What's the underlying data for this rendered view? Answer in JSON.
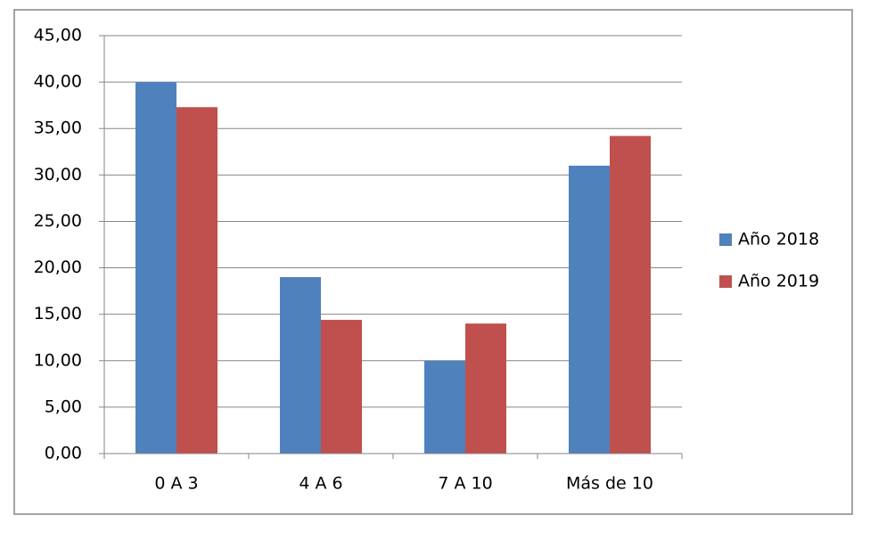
{
  "chart_data": {
    "type": "bar",
    "categories": [
      "0 A 3",
      "4 A 6",
      "7 A 10",
      "Más de 10"
    ],
    "series": [
      {
        "name": "Año 2018",
        "color": "#4f81bd",
        "values": [
          40.0,
          19.0,
          10.0,
          31.0
        ]
      },
      {
        "name": "Año 2019",
        "color": "#c0504d",
        "values": [
          37.3,
          14.4,
          14.0,
          34.2
        ]
      }
    ],
    "ylim": [
      0,
      45
    ],
    "yticks": [
      {
        "value": 0,
        "label": "0,00"
      },
      {
        "value": 5,
        "label": "5,00"
      },
      {
        "value": 10,
        "label": "10,00"
      },
      {
        "value": 15,
        "label": "15,00"
      },
      {
        "value": 20,
        "label": "20,00"
      },
      {
        "value": 25,
        "label": "25,00"
      },
      {
        "value": 30,
        "label": "30,00"
      },
      {
        "value": 35,
        "label": "35,00"
      },
      {
        "value": 40,
        "label": "40,00"
      },
      {
        "value": 45,
        "label": "45,00"
      }
    ],
    "grid": true,
    "legend": "right"
  }
}
